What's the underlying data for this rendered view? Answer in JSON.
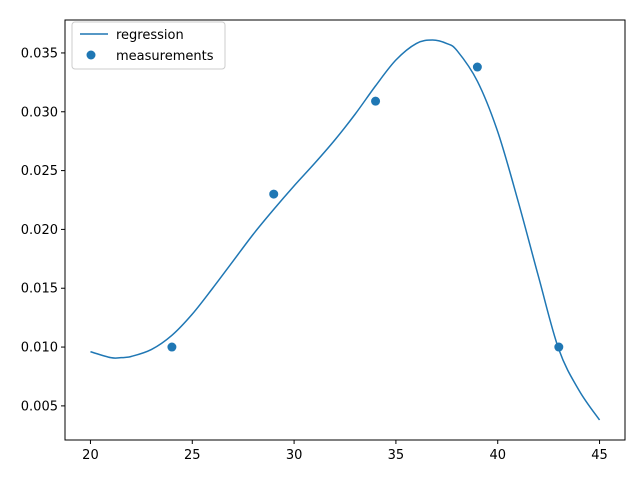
{
  "chart_data": {
    "type": "scatter",
    "title": "",
    "xlabel": "",
    "ylabel": "",
    "xlim": [
      18.75,
      46.25
    ],
    "ylim": [
      0.0021,
      0.0378
    ],
    "x_ticks": [
      20,
      25,
      30,
      35,
      40,
      45
    ],
    "y_ticks": [
      0.005,
      0.01,
      0.015,
      0.02,
      0.025,
      0.03,
      0.035
    ],
    "grid": false,
    "legend_position": "top-left",
    "series": [
      {
        "name": "regression",
        "kind": "line",
        "color": "#1f77b4",
        "x": [
          20,
          21,
          21.5,
          22,
          23,
          24,
          25,
          26,
          27,
          28,
          29,
          30,
          31,
          32,
          33,
          34,
          35,
          36,
          36.8,
          37.5,
          38,
          39,
          40,
          41,
          42,
          43,
          44,
          45
        ],
        "y": [
          0.0096,
          0.0091,
          0.0091,
          0.0092,
          0.0098,
          0.011,
          0.0128,
          0.015,
          0.0173,
          0.0196,
          0.0217,
          0.0237,
          0.0256,
          0.0276,
          0.0298,
          0.0322,
          0.0344,
          0.0358,
          0.0361,
          0.0358,
          0.0352,
          0.0326,
          0.0283,
          0.0224,
          0.016,
          0.0098,
          0.0063,
          0.0038
        ]
      },
      {
        "name": "measurements",
        "kind": "scatter",
        "color": "#1f77b4",
        "x": [
          24,
          29,
          34,
          39,
          43
        ],
        "y": [
          0.01,
          0.023,
          0.0309,
          0.0338,
          0.01
        ]
      }
    ]
  }
}
